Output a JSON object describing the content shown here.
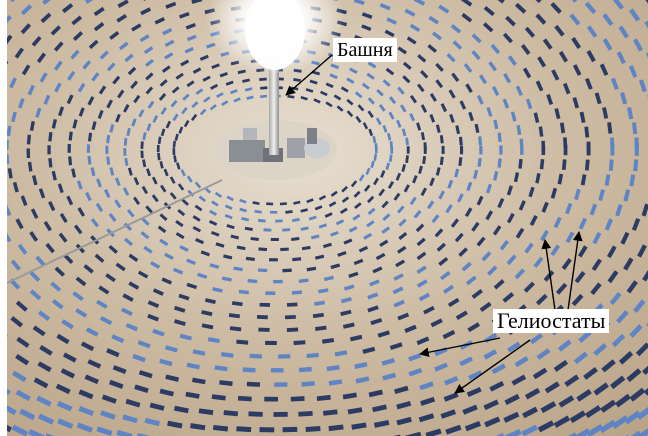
{
  "image": {
    "subject": "solar-power-tower-heliostat-field",
    "colors": {
      "sky_glow": "#ffffff",
      "mirror": "#5f84c4",
      "mirror_dark": "#2c3b63",
      "ground": "#c7b49a",
      "ground_light": "#e6ddd0",
      "tower": "#d8d8d8"
    }
  },
  "annotations": {
    "tower_label": "Башня",
    "heliostats_label": "Гелиостаты"
  }
}
